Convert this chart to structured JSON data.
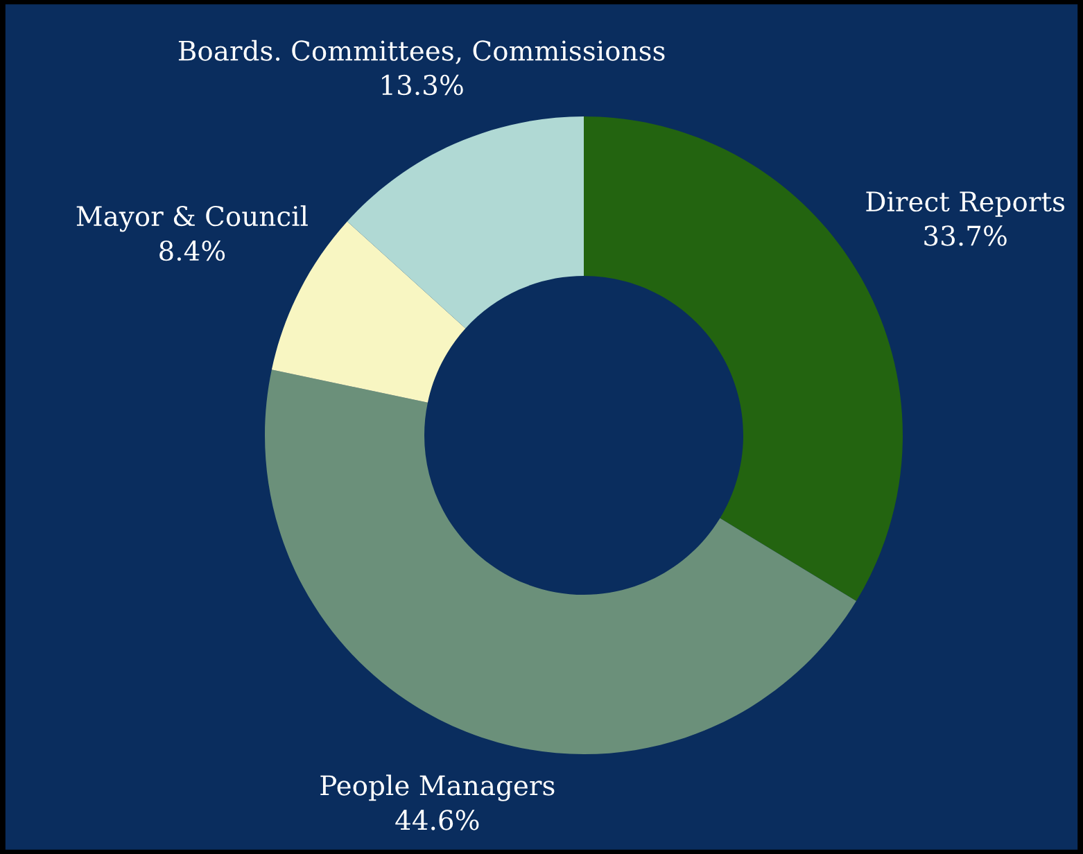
{
  "chart_data": {
    "type": "donut",
    "categories": [
      "Direct Reports",
      "People Managers",
      "Mayor & Council",
      "Boards. Committees, Commissionss"
    ],
    "values": [
      33.7,
      44.6,
      8.4,
      13.3
    ],
    "value_labels": [
      "33.7%",
      "44.6%",
      "8.4%",
      "13.3%"
    ],
    "colors": [
      "#236410",
      "#6b907a",
      "#f8f6c2",
      "#b0d9d4"
    ]
  }
}
